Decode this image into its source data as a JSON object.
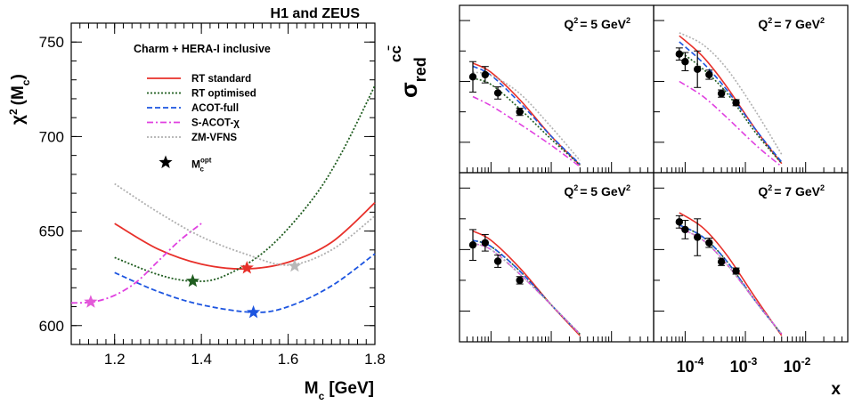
{
  "chart_data": [
    {
      "type": "line",
      "title": "H1 and ZEUS",
      "subtitle": "Charm + HERA-I inclusive",
      "xlabel": "M",
      "xlabel_sub": "c",
      "xlabel_unit": "[GeV]",
      "ylabel": "χ",
      "ylabel_sup": "2",
      "ylabel_arg": "(M",
      "ylabel_arg_sub": "c",
      "ylabel_close": ")",
      "xlim": [
        1.1,
        1.8
      ],
      "ylim": [
        590,
        760
      ],
      "x_ticks": [
        "1.2",
        "1.4",
        "1.6",
        "1.8"
      ],
      "y_ticks": [
        "600",
        "650",
        "700",
        "750"
      ],
      "legend": "top-left",
      "series": [
        {
          "name": "RT standard",
          "color": "#e8302a",
          "dash": "solid",
          "x": [
            1.2,
            1.3,
            1.4,
            1.5,
            1.6,
            1.7,
            1.8
          ],
          "y": [
            654,
            640.5,
            632.5,
            630,
            633.5,
            644,
            665
          ]
        },
        {
          "name": "RT optimised",
          "color": "#1f5c1f",
          "dash": "dot",
          "x": [
            1.2,
            1.3,
            1.38,
            1.45,
            1.55,
            1.65,
            1.72,
            1.8
          ],
          "y": [
            636,
            627,
            623.5,
            626,
            640,
            665,
            690,
            727
          ]
        },
        {
          "name": "ACOT-full",
          "color": "#1d55e0",
          "dash": "dash",
          "x": [
            1.2,
            1.3,
            1.4,
            1.52,
            1.6,
            1.7,
            1.8
          ],
          "y": [
            628,
            618,
            611,
            607,
            610,
            621,
            638
          ]
        },
        {
          "name": "S-ACOT-χ",
          "color": "#e040e0",
          "dash": "dashdot",
          "x": [
            1.1,
            1.15,
            1.2,
            1.25,
            1.3,
            1.35,
            1.4
          ],
          "y": [
            612,
            612.5,
            616,
            623,
            634,
            645,
            654
          ]
        },
        {
          "name": "ZM-VFNS",
          "color": "#b0b0b0",
          "dash": "dot",
          "x": [
            1.2,
            1.3,
            1.4,
            1.5,
            1.6,
            1.7,
            1.8
          ],
          "y": [
            675,
            660,
            647,
            638,
            632,
            640,
            658
          ]
        }
      ],
      "optimum_label": "M",
      "optimum_label_sup": "opt",
      "optimum_label_sub": "c",
      "optimum_points": [
        {
          "series": "RT standard",
          "x": 1.505,
          "y": 630.5,
          "color": "#e8302a"
        },
        {
          "series": "RT optimised",
          "x": 1.38,
          "y": 623.5,
          "color": "#1f5c1f"
        },
        {
          "series": "ACOT-full",
          "x": 1.52,
          "y": 607,
          "color": "#1d55e0"
        },
        {
          "series": "S-ACOT-χ",
          "x": 1.145,
          "y": 612.5,
          "color": "#e35ad8"
        },
        {
          "series": "ZM-VFNS",
          "x": 1.615,
          "y": 631.5,
          "color": "#b8b8b8"
        }
      ]
    },
    {
      "type": "line",
      "ylabel": "σ",
      "ylabel_sub": "red",
      "ylabel_sup": "cc̄",
      "xlabel": "x",
      "x_scale": "log",
      "x_ticks": [
        "10",
        "10",
        "10"
      ],
      "x_tick_exponents": [
        "-4",
        "-3",
        "-2"
      ],
      "xlim": [
        3e-05,
        0.05
      ],
      "panels": [
        {
          "title": "Q",
          "title_sup": "2",
          "title_value": "= 5 GeV",
          "title_value_sup": "2",
          "data": {
            "x": [
              5e-05,
              8e-05,
              0.00013,
              0.0003
            ],
            "y": [
              0.315,
              0.322,
              0.262,
              0.2
            ],
            "err": [
              0.05,
              0.027,
              0.02,
              0.012
            ]
          },
          "curves": {
            "RT standard": {
              "x": [
                5e-05,
                0.0001,
                0.0003,
                0.001,
                0.003
              ],
              "y": [
                0.36,
                0.33,
                0.24,
                0.12,
                0.025
              ]
            },
            "RT optimised": {
              "x": [
                5e-05,
                0.0001,
                0.0003,
                0.001,
                0.003
              ],
              "y": [
                0.31,
                0.29,
                0.21,
                0.11,
                0.025
              ]
            },
            "ACOT-full": {
              "x": [
                5e-05,
                0.0001,
                0.0003,
                0.001,
                0.003
              ],
              "y": [
                0.35,
                0.32,
                0.23,
                0.12,
                0.028
              ]
            },
            "S-ACOT-χ": {
              "x": [
                5e-05,
                0.0001,
                0.0003,
                0.001,
                0.003
              ],
              "y": [
                0.25,
                0.22,
                0.16,
                0.09,
                0.02
              ]
            },
            "ZM-VFNS": {
              "x": [
                5e-05,
                0.0001,
                0.0003,
                0.001,
                0.003
              ],
              "y": [
                0.33,
                0.32,
                0.26,
                0.15,
                0.04
              ]
            }
          }
        },
        {
          "title": "Q",
          "title_sup": "2",
          "title_value": "=  7 GeV",
          "title_value_sup": "2",
          "data": {
            "x": [
              8e-05,
              0.0001,
              0.00016,
              0.00025,
              0.0004,
              0.0007
            ],
            "y": [
              0.39,
              0.365,
              0.34,
              0.322,
              0.26,
              0.23
            ],
            "err": [
              0.02,
              0.03,
              0.06,
              0.015,
              0.012,
              0.01
            ]
          },
          "curves": {
            "RT standard": {
              "x": [
                8e-05,
                0.0002,
                0.0005,
                0.0015,
                0.004
              ],
              "y": [
                0.45,
                0.38,
                0.28,
                0.14,
                0.03
              ]
            },
            "RT optimised": {
              "x": [
                8e-05,
                0.0002,
                0.0005,
                0.0015,
                0.004
              ],
              "y": [
                0.4,
                0.34,
                0.26,
                0.13,
                0.03
              ]
            },
            "ACOT-full": {
              "x": [
                8e-05,
                0.0002,
                0.0005,
                0.0015,
                0.004
              ],
              "y": [
                0.43,
                0.36,
                0.27,
                0.14,
                0.035
              ]
            },
            "S-ACOT-χ": {
              "x": [
                8e-05,
                0.0002,
                0.0005,
                0.0015,
                0.004
              ],
              "y": [
                0.3,
                0.25,
                0.18,
                0.09,
                0.02
              ]
            },
            "ZM-VFNS": {
              "x": [
                8e-05,
                0.0002,
                0.0005,
                0.0015,
                0.004
              ],
              "y": [
                0.46,
                0.42,
                0.34,
                0.2,
                0.06
              ]
            }
          }
        },
        {
          "title": "Q",
          "title_sup": "2",
          "title_value": "= 5 GeV",
          "title_value_sup": "2",
          "data": {
            "x": [
              5e-05,
              8e-05,
              0.00013,
              0.0003
            ],
            "y": [
              0.315,
              0.322,
              0.262,
              0.2
            ],
            "err": [
              0.05,
              0.027,
              0.02,
              0.012
            ]
          },
          "curves": {
            "RT standard": {
              "x": [
                5e-05,
                0.0001,
                0.0003,
                0.001,
                0.003
              ],
              "y": [
                0.36,
                0.33,
                0.24,
                0.12,
                0.02
              ]
            },
            "RT optimised": {
              "x": [
                5e-05,
                0.0001,
                0.0003,
                0.001,
                0.003
              ],
              "y": [
                0.33,
                0.31,
                0.23,
                0.12,
                0.025
              ]
            },
            "ACOT-full": {
              "x": [
                5e-05,
                0.0001,
                0.0003,
                0.001,
                0.003
              ],
              "y": [
                0.33,
                0.31,
                0.23,
                0.12,
                0.025
              ]
            },
            "S-ACOT-χ": {
              "x": [
                5e-05,
                0.0001,
                0.0003,
                0.001,
                0.003
              ],
              "y": [
                0.32,
                0.3,
                0.22,
                0.12,
                0.025
              ]
            },
            "ZM-VFNS": {
              "x": [
                5e-05,
                0.0001,
                0.0003,
                0.001,
                0.003
              ],
              "y": [
                0.32,
                0.3,
                0.22,
                0.12,
                0.025
              ]
            }
          }
        },
        {
          "title": "Q",
          "title_sup": "2",
          "title_value": "= 7 GeV",
          "title_value_sup": "2",
          "data": {
            "x": [
              8e-05,
              0.0001,
              0.00016,
              0.00025,
              0.0004,
              0.0007
            ],
            "y": [
              0.39,
              0.365,
              0.34,
              0.322,
              0.26,
              0.23
            ],
            "err": [
              0.02,
              0.03,
              0.06,
              0.015,
              0.012,
              0.01
            ]
          },
          "curves": {
            "RT standard": {
              "x": [
                8e-05,
                0.0002,
                0.0005,
                0.0015,
                0.004
              ],
              "y": [
                0.42,
                0.37,
                0.28,
                0.14,
                0.02
              ]
            },
            "RT optimised": {
              "x": [
                8e-05,
                0.0002,
                0.0005,
                0.0015,
                0.004
              ],
              "y": [
                0.38,
                0.34,
                0.26,
                0.13,
                0.025
              ]
            },
            "ACOT-full": {
              "x": [
                8e-05,
                0.0002,
                0.0005,
                0.0015,
                0.004
              ],
              "y": [
                0.38,
                0.34,
                0.26,
                0.13,
                0.025
              ]
            },
            "S-ACOT-χ": {
              "x": [
                8e-05,
                0.0002,
                0.0005,
                0.0015,
                0.004
              ],
              "y": [
                0.37,
                0.33,
                0.25,
                0.13,
                0.025
              ]
            },
            "ZM-VFNS": {
              "x": [
                8e-05,
                0.0002,
                0.0005,
                0.0015,
                0.004
              ],
              "y": [
                0.37,
                0.33,
                0.25,
                0.13,
                0.025
              ]
            }
          }
        }
      ]
    }
  ]
}
